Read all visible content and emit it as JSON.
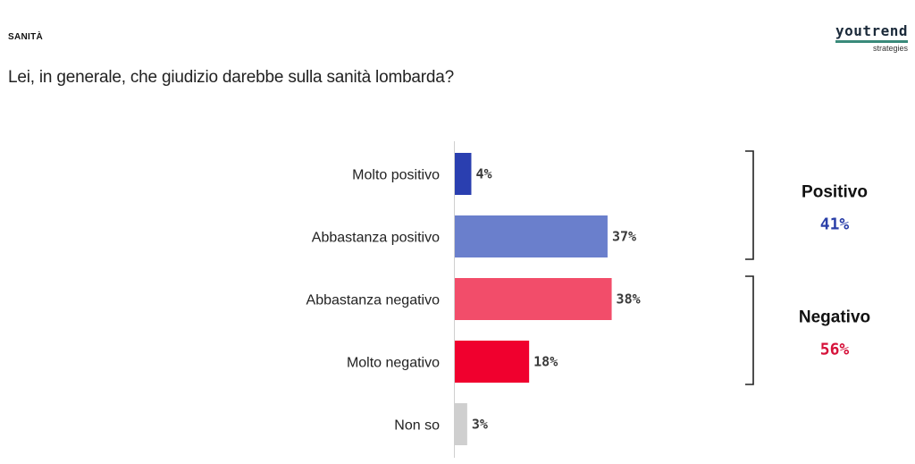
{
  "header": {
    "section": "SANITÀ",
    "question": "Lei, in generale, che giudizio darebbe sulla sanità lombarda?"
  },
  "logo": {
    "name": "youtrend",
    "sub": "strategies",
    "accent": "#3a8a7a"
  },
  "chart_data": {
    "type": "bar",
    "orientation": "horizontal",
    "title": "",
    "xlabel": "",
    "ylabel": "",
    "xlim": [
      0,
      40
    ],
    "grid": false,
    "categories": [
      "Molto positivo",
      "Abbastanza positivo",
      "Abbastanza negativo",
      "Molto negativo",
      "Non so"
    ],
    "values": [
      4,
      37,
      38,
      18,
      3
    ],
    "value_labels": [
      "4%",
      "37%",
      "38%",
      "18%",
      "3%"
    ],
    "colors": [
      "#2a3fb0",
      "#6a7fcc",
      "#f24d6a",
      "#f0002e",
      "#cfcfcf"
    ],
    "groups": [
      {
        "title": "Positivo",
        "value": 41,
        "value_label": "41%",
        "members": [
          0,
          1
        ],
        "color": "#2a3fa8"
      },
      {
        "title": "Negativo",
        "value": 56,
        "value_label": "56%",
        "members": [
          2,
          3
        ],
        "color": "#d6123a"
      }
    ]
  }
}
